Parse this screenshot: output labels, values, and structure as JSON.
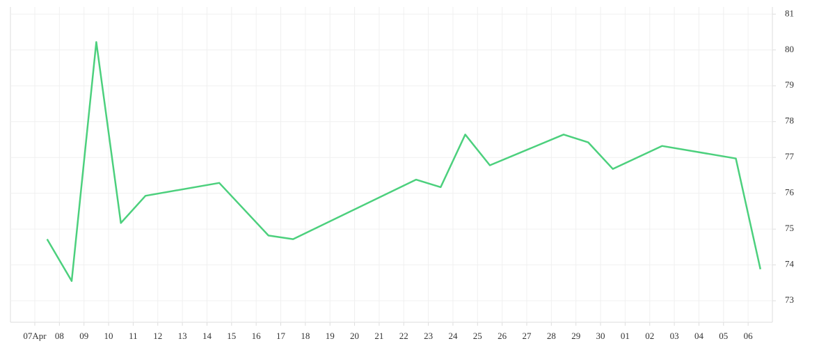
{
  "chart_data": {
    "type": "line",
    "categories": [
      "07Apr",
      "08",
      "09",
      "10",
      "11",
      "12",
      "13",
      "14",
      "15",
      "16",
      "17",
      "18",
      "19",
      "20",
      "21",
      "22",
      "23",
      "24",
      "25",
      "26",
      "27",
      "28",
      "29",
      "30",
      "01",
      "02",
      "03",
      "04",
      "05",
      "06"
    ],
    "x": [
      "07Apr",
      "08",
      "09",
      "10",
      "11",
      "14",
      "16",
      "17",
      "22",
      "23",
      "24",
      "25",
      "28",
      "29",
      "30",
      "02",
      "05",
      "06"
    ],
    "series": [
      {
        "color": "#4cd07d",
        "values": [
          74.72,
          73.55,
          80.22,
          75.17,
          75.93,
          76.29,
          74.82,
          74.72,
          76.38,
          76.17,
          77.64,
          76.78,
          77.64,
          77.42,
          76.68,
          77.32,
          76.97,
          73.88
        ]
      }
    ],
    "ylim": [
      72.4,
      81.2
    ],
    "yticks": [
      73,
      74,
      75,
      76,
      77,
      78,
      79,
      80,
      81
    ],
    "grid": true
  }
}
